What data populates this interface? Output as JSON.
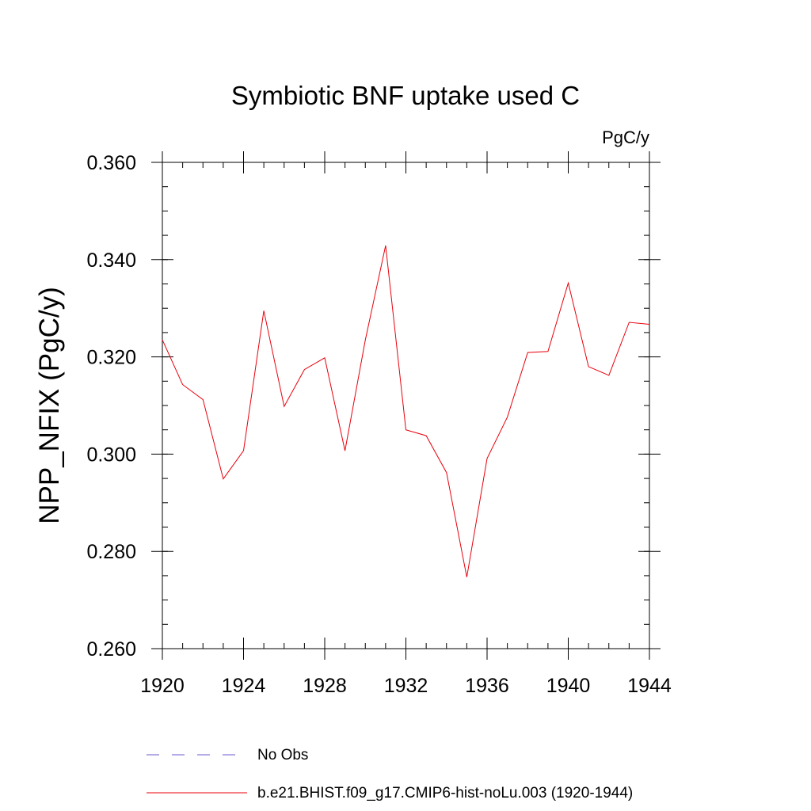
{
  "chart_data": {
    "type": "line",
    "title": "Symbiotic BNF uptake used C",
    "units": "PgC/y",
    "xlabel": "",
    "ylabel": "NPP_NFIX  (PgC/y)",
    "xlim": [
      1920,
      1944
    ],
    "ylim": [
      0.26,
      0.36
    ],
    "x_ticks": [
      "1920",
      "1924",
      "1928",
      "1932",
      "1936",
      "1940",
      "1944"
    ],
    "y_ticks": [
      "0.260",
      "0.280",
      "0.300",
      "0.320",
      "0.340",
      "0.360"
    ],
    "x": [
      1920,
      1921,
      1922,
      1923,
      1924,
      1925,
      1926,
      1927,
      1928,
      1929,
      1930,
      1931,
      1932,
      1933,
      1934,
      1935,
      1936,
      1937,
      1938,
      1939,
      1940,
      1941,
      1942,
      1943,
      1944
    ],
    "series": [
      {
        "name": "b.e21.BHIST.f09_g17.CMIP6-hist-noLu.003 (1920-1944)",
        "color": "#e8000b",
        "style": "solid",
        "values": [
          0.3235,
          0.3143,
          0.3112,
          0.2949,
          0.3007,
          0.3295,
          0.3098,
          0.3174,
          0.3198,
          0.3007,
          0.3235,
          0.3429,
          0.305,
          0.3038,
          0.2962,
          0.2747,
          0.2991,
          0.3076,
          0.3209,
          0.3211,
          0.3352,
          0.318,
          0.3162,
          0.3271,
          0.3267
        ]
      }
    ],
    "legend": [
      {
        "label": "No Obs",
        "color": "#6a5acd",
        "style": "dashed"
      },
      {
        "label": "b.e21.BHIST.f09_g17.CMIP6-hist-noLu.003 (1920-1944)",
        "color": "#e8000b",
        "style": "solid"
      }
    ]
  }
}
